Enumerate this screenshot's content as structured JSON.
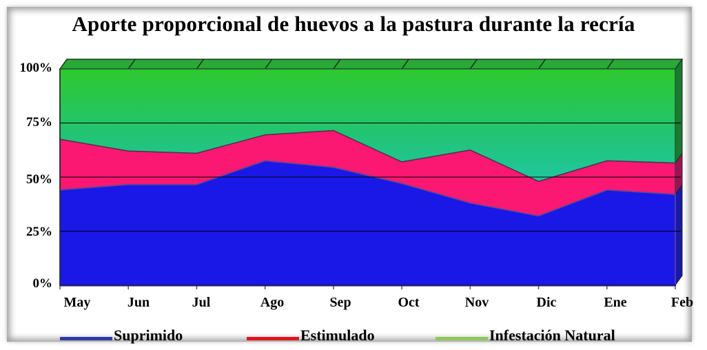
{
  "title": "Aporte proporcional de huevos a la pastura durante la recría",
  "y_axis": {
    "ticks": [
      "100%",
      "75%",
      "50%",
      "25%",
      "0%"
    ]
  },
  "x_axis": {
    "ticks": [
      "May",
      "Jun",
      "Jul",
      "Ago",
      "Sep",
      "Oct",
      "Nov",
      "Dic",
      "Ene",
      "Feb"
    ]
  },
  "legend": [
    {
      "label": "Suprimido",
      "color": "#2f3aa8"
    },
    {
      "label": "Estimulado",
      "color": "#e0141e"
    },
    {
      "label": "Infestación Natural",
      "color": "#8cc85a"
    }
  ],
  "colors": {
    "suprimido_fill": "#1a18e6",
    "estimulado_fill": "#fa1872",
    "natural_fill_top": "#2ec82e",
    "natural_fill_bottom": "#20c690",
    "top_face": "#2aa838",
    "side_face": "#1a7a30"
  },
  "chart_data": {
    "type": "area",
    "stacked": true,
    "normalized": true,
    "title": "Aporte proporcional de huevos a la pastura durante la recría",
    "xlabel": "",
    "ylabel": "",
    "ylim": [
      0,
      100
    ],
    "yticks": [
      "0%",
      "25%",
      "50%",
      "75%",
      "100%"
    ],
    "grid": true,
    "legend_position": "bottom",
    "categories": [
      "May",
      "Jun",
      "Jul",
      "Ago",
      "Sep",
      "Oct",
      "Nov",
      "Dic",
      "Ene",
      "Feb"
    ],
    "series": [
      {
        "name": "Suprimido",
        "values": [
          44,
          46.5,
          46.5,
          57.5,
          54.5,
          47,
          38,
          32,
          44,
          42
        ]
      },
      {
        "name": "Estimulado",
        "values": [
          23.5,
          15.5,
          14.5,
          12,
          17,
          10,
          24.5,
          16,
          13.5,
          14.5
        ]
      },
      {
        "name": "Infestación Natural",
        "values": [
          32.5,
          38,
          39,
          30.5,
          28.5,
          43,
          37.5,
          52,
          42.5,
          43.5
        ]
      }
    ]
  }
}
